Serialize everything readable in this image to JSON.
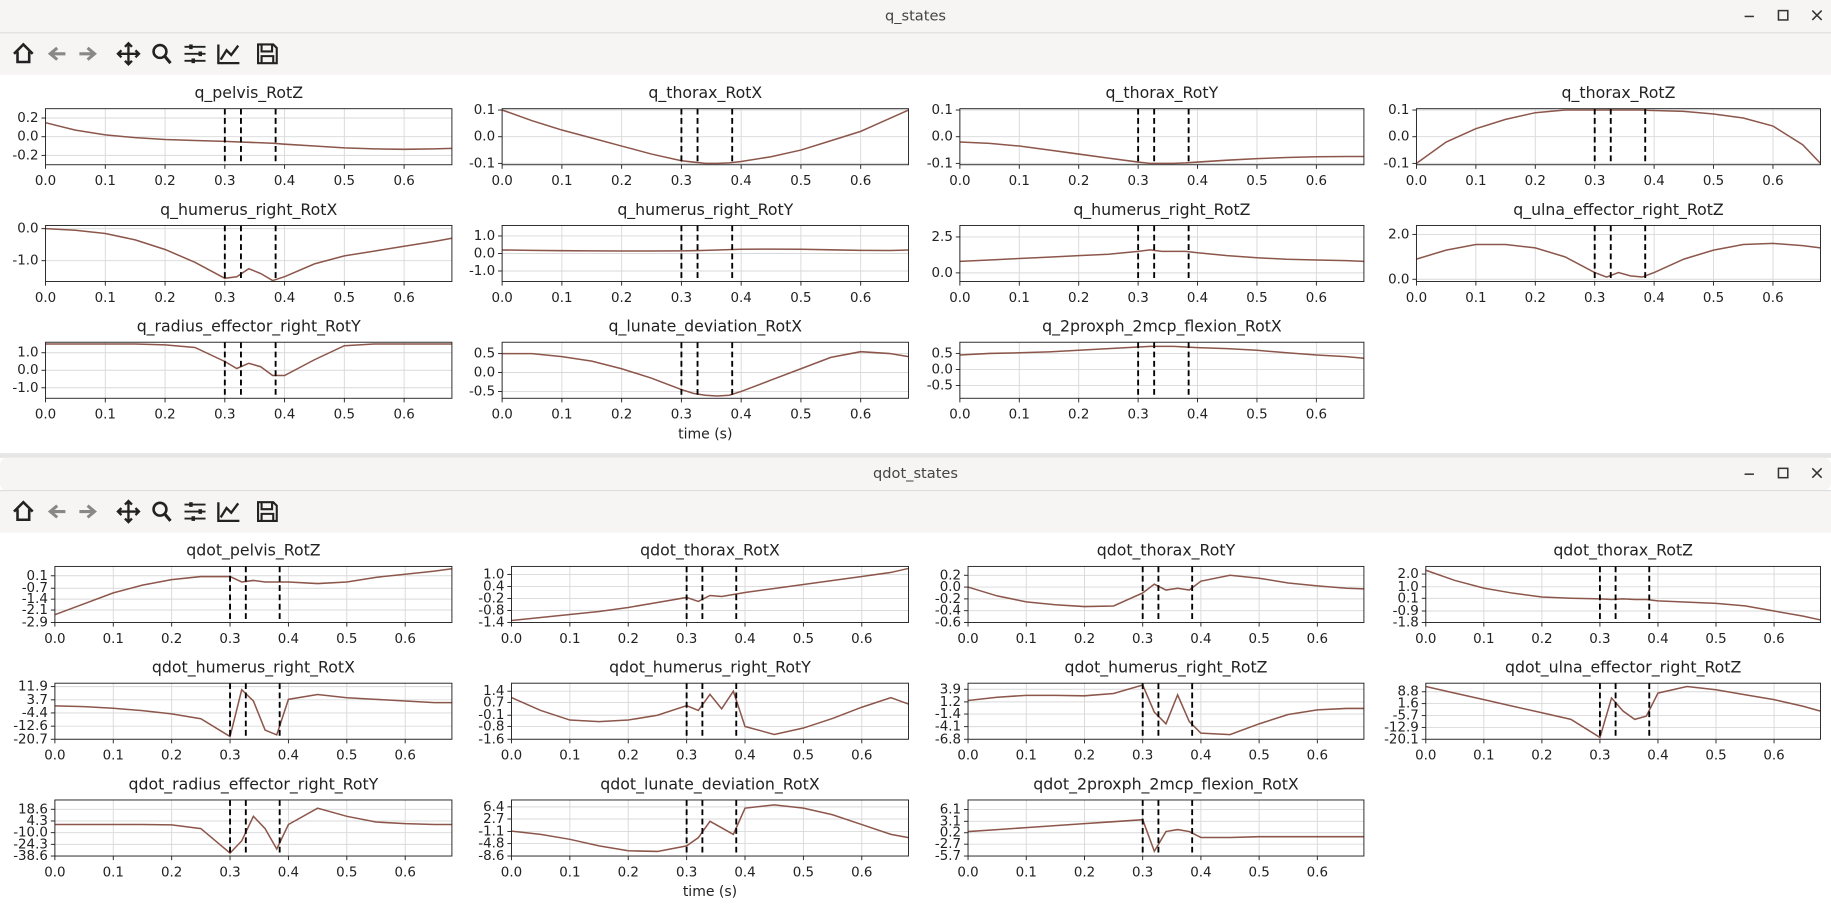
{
  "windows": [
    {
      "title": "q_states",
      "xlabel": "time (s)",
      "line_color": "#8c564b",
      "grid": true,
      "x": [
        0,
        0.05,
        0.1,
        0.15,
        0.2,
        0.25,
        0.3,
        0.32,
        0.34,
        0.36,
        0.38,
        0.4,
        0.45,
        0.5,
        0.55,
        0.6,
        0.65,
        0.68
      ],
      "xlim": [
        0,
        0.68
      ],
      "xticks": [
        {
          "value": 0,
          "label": "0.0"
        },
        0.1,
        0.2,
        0.3,
        0.4,
        0.5,
        0.6
      ],
      "vlines": [
        0.3,
        0.327,
        0.385
      ],
      "charts": [
        {
          "type": "line",
          "title": "q_pelvis_RotZ",
          "ylim": [
            -0.3,
            0.3
          ],
          "yticks": [
            0.2,
            {
              "value": 0,
              "label": "0.0"
            },
            -0.2
          ],
          "values": [
            0.15,
            0.07,
            0.02,
            -0.01,
            -0.03,
            -0.04,
            -0.05,
            -0.055,
            -0.06,
            -0.065,
            -0.07,
            -0.08,
            -0.1,
            -0.12,
            -0.13,
            -0.135,
            -0.13,
            -0.125
          ]
        },
        {
          "type": "line",
          "title": "q_thorax_RotX",
          "ylim": [
            -0.105,
            0.105
          ],
          "yticks": [
            0.1,
            {
              "value": 0,
              "label": "0.0"
            },
            -0.1
          ],
          "values": [
            0.1,
            0.06,
            0.025,
            -0.005,
            -0.035,
            -0.065,
            -0.09,
            -0.095,
            -0.1,
            -0.1,
            -0.098,
            -0.093,
            -0.075,
            -0.05,
            -0.015,
            0.02,
            0.07,
            0.1
          ]
        },
        {
          "type": "line",
          "title": "q_thorax_RotY",
          "ylim": [
            -0.105,
            0.105
          ],
          "yticks": [
            0.1,
            {
              "value": 0,
              "label": "0.0"
            },
            -0.1
          ],
          "values": [
            -0.02,
            -0.025,
            -0.035,
            -0.05,
            -0.065,
            -0.08,
            -0.095,
            -0.1,
            -0.1,
            -0.1,
            -0.098,
            -0.095,
            -0.088,
            -0.082,
            -0.078,
            -0.075,
            -0.074,
            -0.074
          ]
        },
        {
          "type": "line",
          "title": "q_thorax_RotZ",
          "ylim": [
            -0.105,
            0.105
          ],
          "yticks": [
            0.1,
            {
              "value": 0,
              "label": "0.0"
            },
            -0.1
          ],
          "values": [
            -0.1,
            -0.02,
            0.03,
            0.065,
            0.09,
            0.1,
            0.1,
            0.1,
            0.1,
            0.1,
            0.1,
            0.098,
            0.095,
            0.085,
            0.07,
            0.04,
            -0.03,
            -0.1
          ]
        },
        {
          "type": "line",
          "title": "q_humerus_right_RotX",
          "ylim": [
            -1.65,
            0.1
          ],
          "yticks": [
            {
              "value": 0,
              "label": "0.0"
            },
            {
              "value": -1,
              "label": "-1.0"
            }
          ],
          "values": [
            0,
            -0.05,
            -0.15,
            -0.35,
            -0.65,
            -1.05,
            -1.55,
            -1.5,
            -1.25,
            -1.4,
            -1.62,
            -1.5,
            -1.1,
            -0.85,
            -0.7,
            -0.55,
            -0.4,
            -0.3
          ]
        },
        {
          "type": "line",
          "title": "q_humerus_right_RotY",
          "ylim": [
            -1.6,
            1.6
          ],
          "yticks": [
            {
              "value": 1,
              "label": "1.0"
            },
            {
              "value": 0,
              "label": "0.0"
            },
            {
              "value": -1,
              "label": "-1.0"
            }
          ],
          "values": [
            0.2,
            0.18,
            0.16,
            0.15,
            0.14,
            0.14,
            0.15,
            0.16,
            0.18,
            0.2,
            0.22,
            0.24,
            0.25,
            0.24,
            0.21,
            0.18,
            0.17,
            0.2
          ]
        },
        {
          "type": "line",
          "title": "q_humerus_right_RotZ",
          "ylim": [
            -0.6,
            3.3
          ],
          "yticks": [
            2.5,
            {
              "value": 0,
              "label": "0.0"
            }
          ],
          "values": [
            0.8,
            0.9,
            1.0,
            1.1,
            1.2,
            1.3,
            1.5,
            1.6,
            1.5,
            1.5,
            1.5,
            1.4,
            1.2,
            1.05,
            0.95,
            0.9,
            0.85,
            0.8
          ]
        },
        {
          "type": "line",
          "title": "q_ulna_effector_right_RotZ",
          "ylim": [
            -0.1,
            2.4
          ],
          "yticks": [
            {
              "value": 2,
              "label": "2.0"
            },
            {
              "value": 0,
              "label": "0.0"
            }
          ],
          "values": [
            0.9,
            1.3,
            1.55,
            1.55,
            1.4,
            1.0,
            0.3,
            0.1,
            0.3,
            0.15,
            0.1,
            0.3,
            0.9,
            1.3,
            1.55,
            1.6,
            1.5,
            1.4
          ]
        },
        {
          "type": "line",
          "title": "q_radius_effector_right_RotY",
          "ylim": [
            -1.6,
            1.6
          ],
          "yticks": [
            {
              "value": 1,
              "label": "1.0"
            },
            {
              "value": 0,
              "label": "0.0"
            },
            {
              "value": -1,
              "label": "-1.0"
            }
          ],
          "values": [
            1.5,
            1.5,
            1.5,
            1.5,
            1.45,
            1.3,
            0.5,
            0.1,
            0.4,
            0.2,
            -0.3,
            -0.3,
            0.6,
            1.4,
            1.5,
            1.5,
            1.5,
            1.5
          ]
        },
        {
          "type": "line",
          "title": "q_lunate_deviation_RotX",
          "ylim": [
            -0.68,
            0.8
          ],
          "yticks": [
            0.5,
            {
              "value": 0,
              "label": "0.0"
            },
            -0.5
          ],
          "values": [
            0.5,
            0.5,
            0.42,
            0.3,
            0.1,
            -0.15,
            -0.45,
            -0.55,
            -0.6,
            -0.62,
            -0.6,
            -0.5,
            -0.2,
            0.1,
            0.4,
            0.55,
            0.5,
            0.42
          ]
        },
        {
          "type": "line",
          "title": "q_2proxph_2mcp_flexion_RotX",
          "ylim": [
            -0.9,
            0.85
          ],
          "yticks": [
            0.5,
            {
              "value": 0,
              "label": "0.0"
            },
            -0.5
          ],
          "values": [
            0.45,
            0.5,
            0.52,
            0.55,
            0.6,
            0.65,
            0.7,
            0.72,
            0.72,
            0.72,
            0.7,
            0.68,
            0.65,
            0.6,
            0.52,
            0.45,
            0.4,
            0.35
          ]
        }
      ]
    },
    {
      "title": "qdot_states",
      "xlabel": "time (s)",
      "line_color": "#8c564b",
      "grid": true,
      "x": [
        0,
        0.05,
        0.1,
        0.15,
        0.2,
        0.25,
        0.3,
        0.32,
        0.34,
        0.36,
        0.38,
        0.4,
        0.45,
        0.5,
        0.55,
        0.6,
        0.65,
        0.68
      ],
      "xlim": [
        0,
        0.68
      ],
      "xticks": [
        {
          "value": 0,
          "label": "0.0"
        },
        0.1,
        0.2,
        0.3,
        0.4,
        0.5,
        0.6
      ],
      "vlines": [
        0.3,
        0.327,
        0.385
      ],
      "charts": [
        {
          "type": "line",
          "title": "qdot_pelvis_RotZ",
          "ylim": [
            -2.9,
            0.7
          ],
          "yticks": [
            0.1,
            -0.7,
            -1.4,
            -2.1,
            -2.9
          ],
          "values": [
            -2.4,
            -1.7,
            -1.0,
            -0.5,
            -0.15,
            0.05,
            0.05,
            -0.3,
            -0.2,
            -0.3,
            -0.3,
            -0.3,
            -0.4,
            -0.3,
            0.0,
            0.2,
            0.4,
            0.55
          ]
        },
        {
          "type": "line",
          "title": "qdot_thorax_RotX",
          "ylim": [
            -1.4,
            1.4
          ],
          "yticks": [
            {
              "value": 1,
              "label": "1.0"
            },
            0.4,
            -0.2,
            -0.8,
            -1.4
          ],
          "values": [
            -1.3,
            -1.15,
            -1.0,
            -0.85,
            -0.65,
            -0.4,
            -0.15,
            -0.35,
            -0.05,
            -0.1,
            0.0,
            0.1,
            0.3,
            0.5,
            0.7,
            0.9,
            1.1,
            1.3
          ]
        },
        {
          "type": "line",
          "title": "qdot_thorax_RotY",
          "ylim": [
            -0.6,
            0.35
          ],
          "yticks": [
            0.2,
            {
              "value": 0,
              "label": "0.0"
            },
            -0.2,
            -0.4,
            -0.6
          ],
          "values": [
            0.0,
            -0.15,
            -0.25,
            -0.3,
            -0.33,
            -0.32,
            -0.1,
            0.05,
            -0.05,
            -0.02,
            -0.05,
            0.1,
            0.2,
            0.15,
            0.07,
            0.02,
            -0.02,
            -0.03
          ]
        },
        {
          "type": "line",
          "title": "qdot_thorax_RotZ",
          "ylim": [
            -1.8,
            2.6
          ],
          "yticks": [
            {
              "value": 2,
              "label": "2.0"
            },
            {
              "value": 1,
              "label": "1.0"
            },
            0.1,
            -0.9,
            -1.8
          ],
          "values": [
            2.3,
            1.5,
            0.9,
            0.5,
            0.2,
            0.1,
            0.05,
            0.0,
            0.05,
            0.0,
            0.0,
            -0.1,
            -0.2,
            -0.3,
            -0.5,
            -0.9,
            -1.3,
            -1.6
          ]
        },
        {
          "type": "line",
          "title": "qdot_humerus_right_RotX",
          "ylim": [
            -20.7,
            14
          ],
          "yticks": [
            11.9,
            3.7,
            -4.4,
            -12.6,
            -20.7
          ],
          "values": [
            0,
            -0.5,
            -1.5,
            -3,
            -5,
            -8,
            -19,
            10,
            3,
            -15,
            -18,
            4,
            7,
            5,
            4,
            3,
            2,
            2
          ]
        },
        {
          "type": "line",
          "title": "qdot_humerus_right_RotY",
          "ylim": [
            -1.6,
            1.9
          ],
          "yticks": [
            1.4,
            0.7,
            -0.1,
            -0.8,
            -1.6
          ],
          "values": [
            1.0,
            0.2,
            -0.4,
            -0.5,
            -0.4,
            -0.1,
            0.5,
            0.2,
            1.2,
            0.3,
            1.4,
            -0.8,
            -1.3,
            -0.9,
            -0.3,
            0.4,
            1.0,
            0.6
          ]
        },
        {
          "type": "line",
          "title": "qdot_humerus_right_RotZ",
          "ylim": [
            -6.8,
            5.2
          ],
          "yticks": [
            3.9,
            1.2,
            -1.4,
            -4.1,
            -6.8
          ],
          "values": [
            1.5,
            2.2,
            2.6,
            2.6,
            2.5,
            3.0,
            4.8,
            -1,
            -3.5,
            2.7,
            -3,
            -5.5,
            -5.8,
            -3.5,
            -1.5,
            -0.5,
            -0.2,
            -0.2
          ]
        },
        {
          "type": "line",
          "title": "qdot_ulna_effector_right_RotZ",
          "ylim": [
            -20.1,
            14
          ],
          "yticks": [
            8.8,
            1.6,
            -5.7,
            -12.9,
            -20.1
          ],
          "values": [
            12,
            8,
            4,
            0,
            -4,
            -8,
            -19,
            5,
            -3,
            -8,
            -6,
            8,
            12,
            10,
            7,
            4,
            0,
            -3
          ]
        },
        {
          "type": "line",
          "title": "qdot_radius_effector_right_RotY",
          "ylim": [
            -38.6,
            30
          ],
          "yticks": [
            18.6,
            4.3,
            {
              "value": -10,
              "label": "-10.0"
            },
            -24.3,
            -38.6
          ],
          "values": [
            0,
            0,
            0,
            0,
            -0.5,
            -5,
            -35,
            -20,
            10,
            -5,
            -30,
            0,
            20,
            10,
            3,
            1,
            0,
            0
          ]
        },
        {
          "type": "line",
          "title": "qdot_lunate_deviation_RotX",
          "ylim": [
            -8.6,
            8.5
          ],
          "yticks": [
            6.4,
            2.7,
            -1.1,
            -4.8,
            -8.6
          ],
          "values": [
            -1,
            -2,
            -3.5,
            -5.5,
            -7,
            -7.2,
            -5.5,
            -3,
            2,
            0,
            -2,
            6,
            7,
            6,
            4,
            1,
            -2,
            -3
          ]
        },
        {
          "type": "line",
          "title": "qdot_2proxph_2mcp_flexion_RotX",
          "ylim": [
            -5.7,
            8.5
          ],
          "yticks": [
            6.1,
            3.1,
            0.2,
            -2.7,
            -5.7
          ],
          "values": [
            0.5,
            1,
            1.5,
            2,
            2.5,
            3,
            3.5,
            -4.5,
            0.5,
            1,
            0.5,
            -1,
            -1,
            -0.8,
            -0.8,
            -0.8,
            -0.8,
            -0.8
          ]
        }
      ]
    }
  ]
}
